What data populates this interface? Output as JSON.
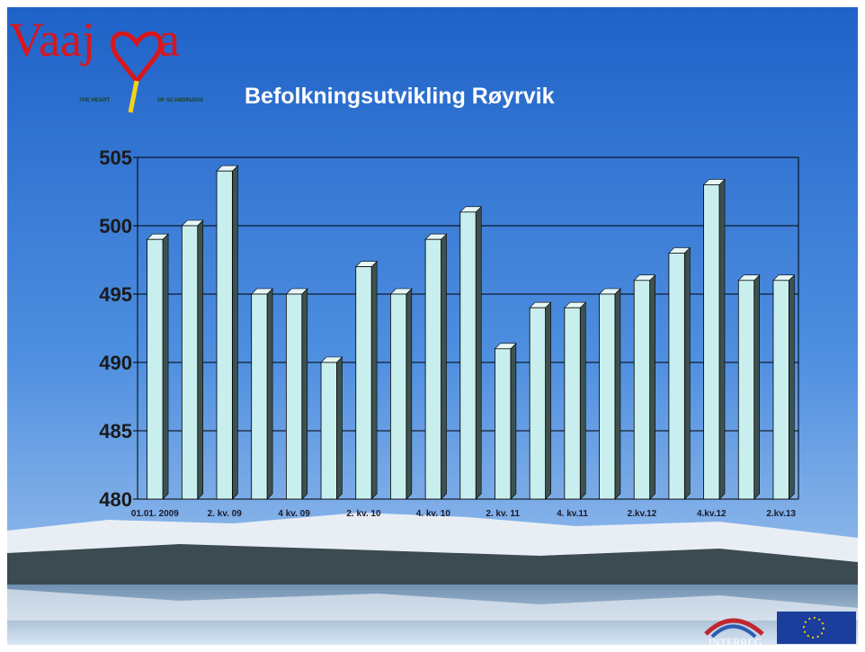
{
  "logo": {
    "name_start": "Vaaj",
    "name_end": "a",
    "tagline_left": "THE HEART",
    "tagline_right": "OF SCANDINAVIA"
  },
  "footer": {
    "program": "INTERREG"
  },
  "chart_data": {
    "type": "bar",
    "title": "Befolkningsutvikling Røyrvik",
    "categories": [
      "01.01. 2009",
      null,
      "2. kv. 09",
      null,
      "4 kv. 09",
      null,
      "2. kv. 10",
      null,
      "4. kv. 10",
      null,
      "2. kv. 11",
      null,
      "4. kv.11",
      null,
      "2.kv.12",
      null,
      "4.kv.12",
      null,
      "2.kv.13"
    ],
    "values": [
      499,
      500,
      504,
      495,
      495,
      490,
      497,
      495,
      499,
      501,
      491,
      494,
      494,
      495,
      496,
      498,
      503,
      496,
      496
    ],
    "color": "#c9eeee",
    "ylim": [
      480,
      505
    ],
    "yticks": [
      480,
      485,
      490,
      495,
      500,
      505
    ],
    "grid": true
  }
}
